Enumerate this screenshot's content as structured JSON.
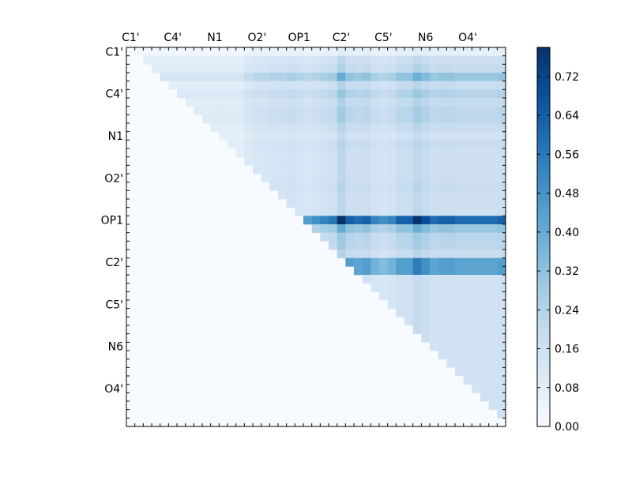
{
  "chart_data": {
    "type": "heatmap",
    "title": "",
    "xlabel": "",
    "ylabel": "",
    "n": 45,
    "tick_labels": [
      "C1'",
      "C4'",
      "N1",
      "O2'",
      "OP1",
      "C2'",
      "C5'",
      "N6",
      "O4'"
    ],
    "tick_every": 5,
    "colorbar": {
      "cmap": "Blues",
      "range": [
        0.0,
        0.78
      ],
      "ticks": [
        "0.00",
        "0.08",
        "0.16",
        "0.24",
        "0.32",
        "0.40",
        "0.48",
        "0.56",
        "0.64",
        "0.72"
      ],
      "tick_values": [
        0.0,
        0.08,
        0.16,
        0.24,
        0.32,
        0.4,
        0.48,
        0.56,
        0.64,
        0.72
      ]
    },
    "row_profile": [
      0.01,
      0.06,
      0.08,
      0.2,
      0.07,
      0.12,
      0.08,
      0.1,
      0.1,
      0.07,
      0.05,
      0.07,
      0.06,
      0.06,
      0.06,
      0.06,
      0.07,
      0.06,
      0.06,
      0.06,
      0.8,
      0.2,
      0.11,
      0.1,
      0.07,
      0.4,
      0.4,
      0.05,
      0.05,
      0.05,
      0.05,
      0.05,
      0.05,
      0.05,
      0.05,
      0.05,
      0.05,
      0.05,
      0.05,
      0.05,
      0.05,
      0.05,
      0.05,
      0.05,
      0.05
    ],
    "col_profile": [
      0.05,
      0.05,
      0.1,
      0.1,
      0.1,
      0.1,
      0.1,
      0.1,
      0.1,
      0.1,
      0.1,
      0.1,
      0.1,
      0.1,
      0.2,
      0.25,
      0.25,
      0.3,
      0.3,
      0.35,
      0.3,
      0.25,
      0.3,
      0.35,
      0.4,
      0.8,
      0.5,
      0.45,
      0.5,
      0.35,
      0.3,
      0.35,
      0.5,
      0.5,
      0.75,
      0.6,
      0.45,
      0.5,
      0.5,
      0.45,
      0.45,
      0.45,
      0.45,
      0.45,
      0.5
    ]
  }
}
